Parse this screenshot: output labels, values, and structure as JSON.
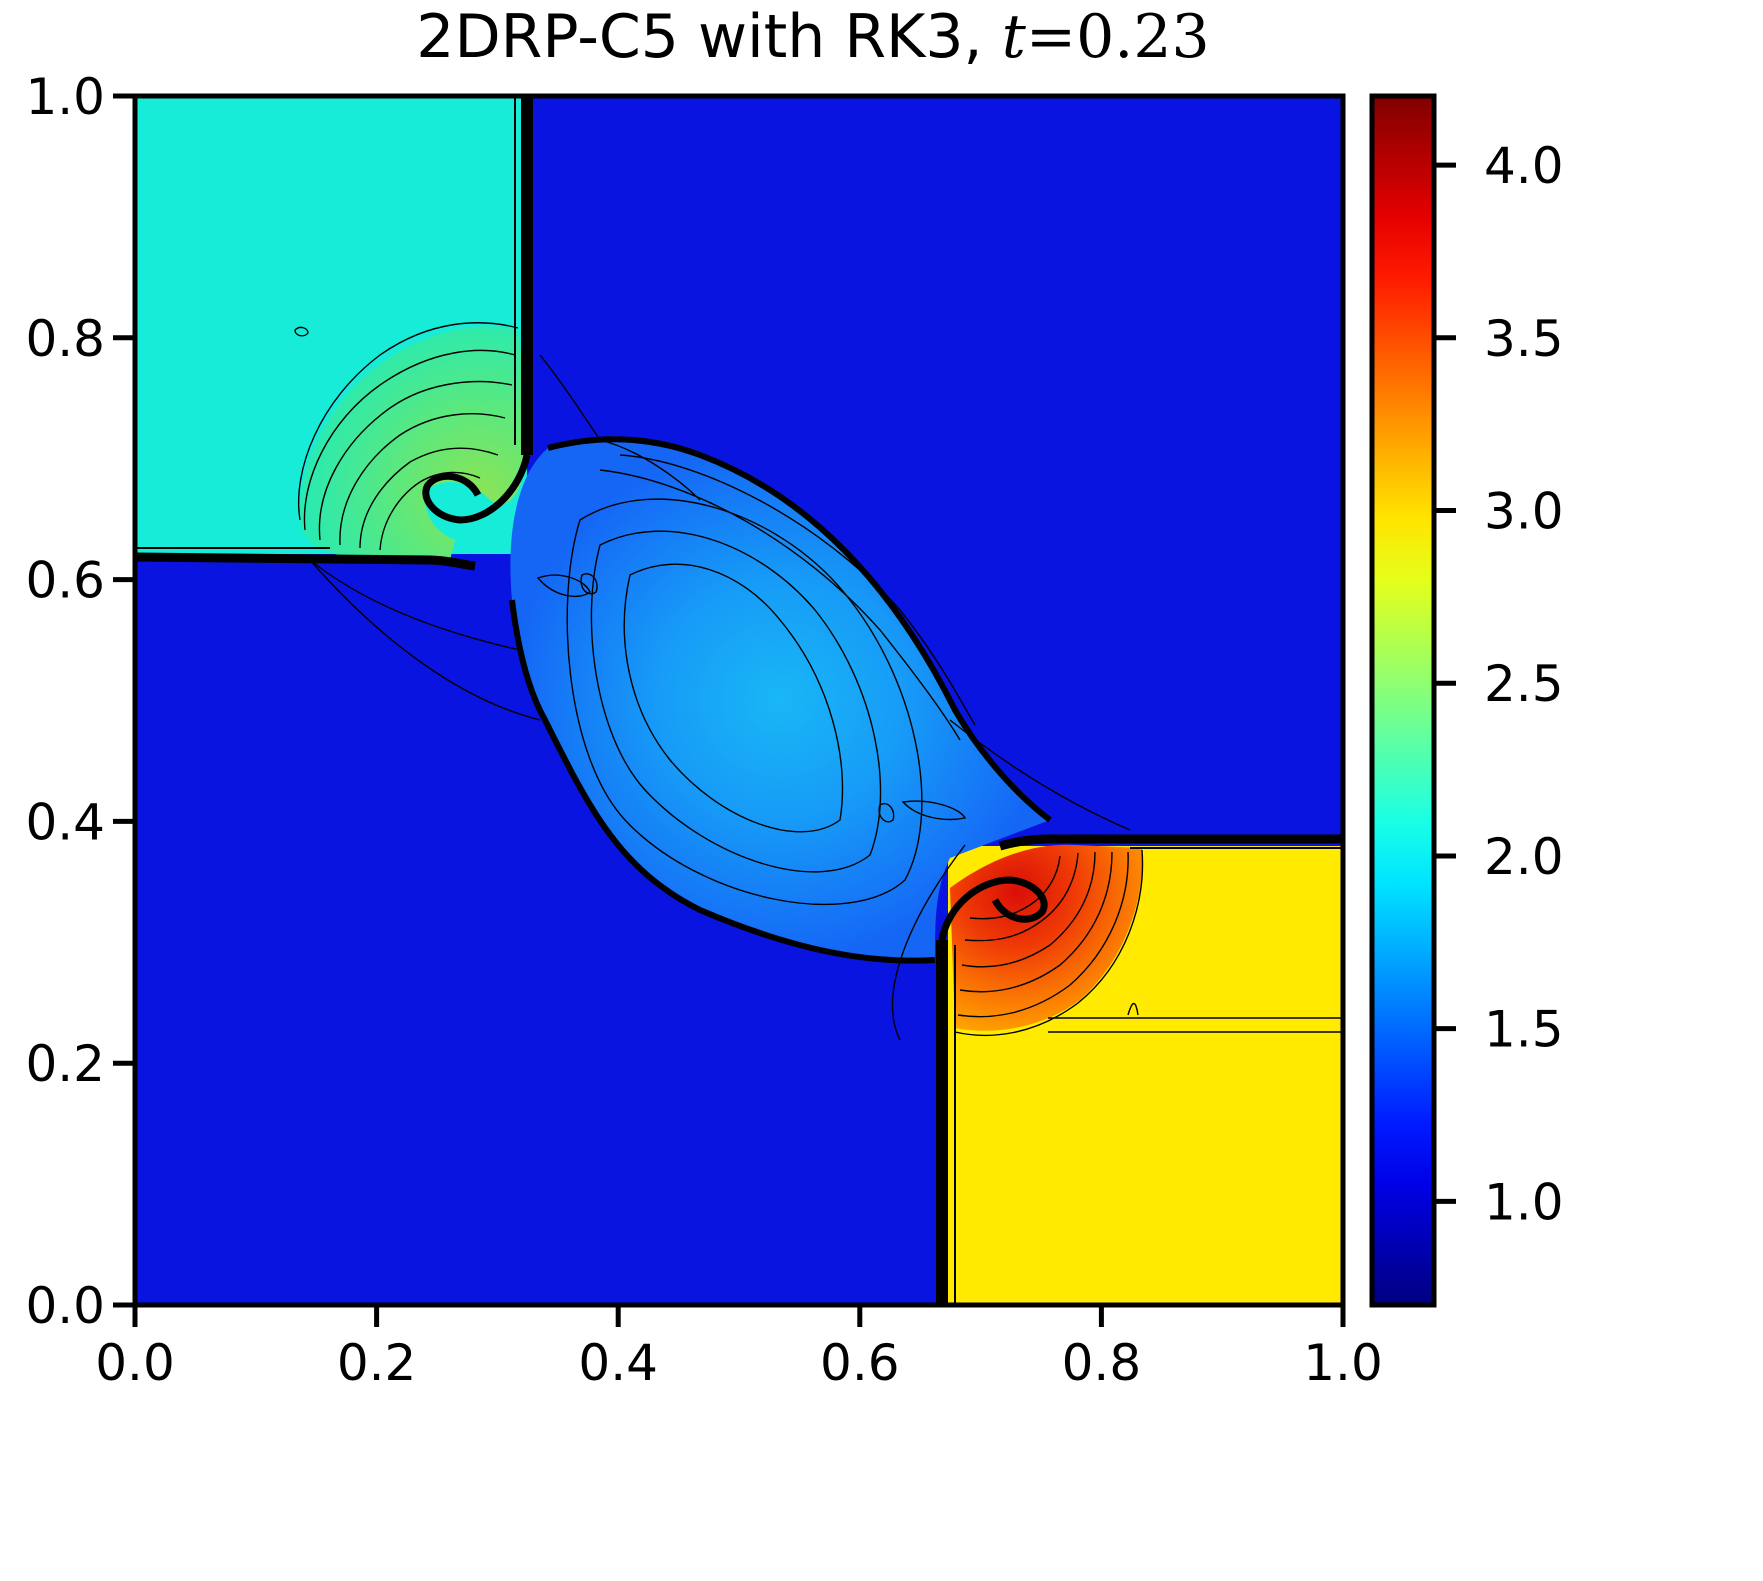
{
  "chart_data": {
    "type": "heatmap",
    "title": {
      "prefix": "2DRP-C5 with RK3, ",
      "variable": "t",
      "operator": "=",
      "value": "0.23"
    },
    "xlabel": "",
    "ylabel": "",
    "xlim": [
      0.0,
      1.0
    ],
    "ylim": [
      0.0,
      1.0
    ],
    "x_ticks": [
      "0.0",
      "0.2",
      "0.4",
      "0.6",
      "0.8",
      "1.0"
    ],
    "y_ticks": [
      "0.0",
      "0.2",
      "0.4",
      "0.6",
      "0.8",
      "1.0"
    ],
    "colorbar": {
      "colormap": "jet",
      "range": [
        0.7,
        4.2
      ],
      "ticks": [
        "1.0",
        "1.5",
        "2.0",
        "2.5",
        "3.0",
        "3.5",
        "4.0"
      ],
      "tick_values": [
        1.0,
        1.5,
        2.0,
        2.5,
        3.0,
        3.5,
        4.0
      ]
    },
    "regions": [
      {
        "name": "top-left quadrant",
        "value": 2.0
      },
      {
        "name": "top-right quadrant",
        "value": 1.0
      },
      {
        "name": "bottom-left quadrant",
        "value": 1.0
      },
      {
        "name": "bottom-right quadrant",
        "value": 3.0
      },
      {
        "name": "central diamond",
        "value": 1.6
      },
      {
        "name": "upper-left vortex lobe",
        "value": 2.4
      },
      {
        "name": "lower-right vortex lobe",
        "value": 3.9
      }
    ],
    "contours": true,
    "grid": false
  }
}
